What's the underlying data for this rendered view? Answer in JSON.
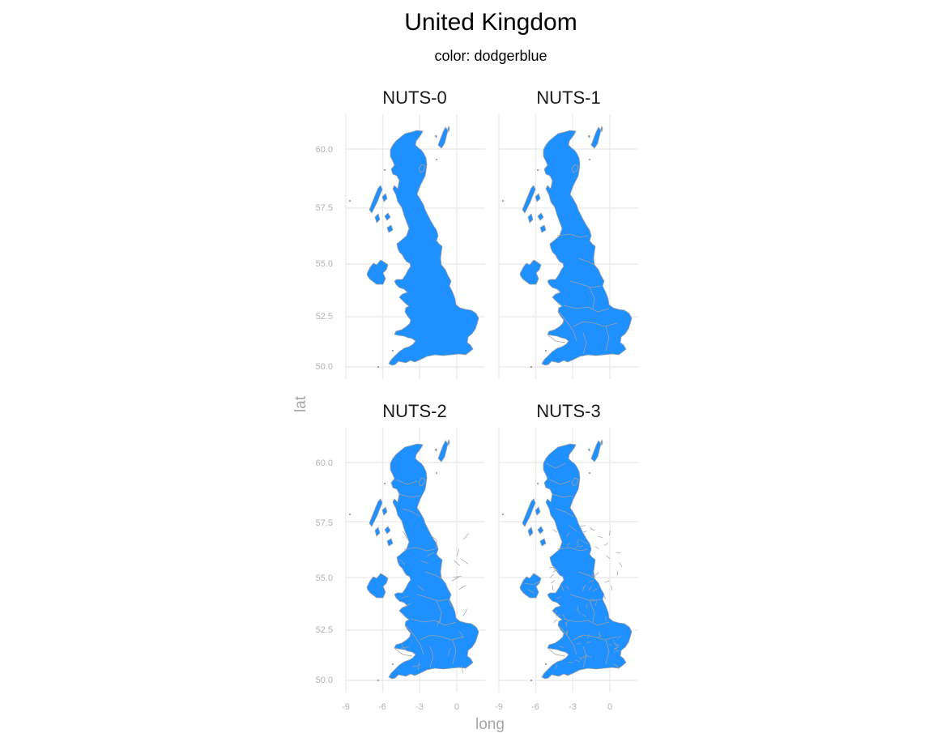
{
  "title": "United Kingdom",
  "subtitle": "color: dodgerblue",
  "fill_color": "#1e90ff",
  "border_color": "#a0a0a0",
  "grid_color": "#ebebeb",
  "axes": {
    "x_title": "long",
    "y_title": "lat",
    "x_ticks": [
      "-9",
      "-6",
      "-3",
      "0"
    ],
    "y_ticks": [
      "60.0",
      "57.5",
      "55.0",
      "52.5",
      "50.0"
    ]
  },
  "panels": [
    {
      "label": "NUTS-0",
      "level": 0
    },
    {
      "label": "NUTS-1",
      "level": 1
    },
    {
      "label": "NUTS-2",
      "level": 2
    },
    {
      "label": "NUTS-3",
      "level": 3
    }
  ],
  "chart_data": {
    "type": "map",
    "region": "United Kingdom",
    "facets": [
      "NUTS-0",
      "NUTS-1",
      "NUTS-2",
      "NUTS-3"
    ],
    "x_range": [
      -10,
      2
    ],
    "y_range": [
      49.8,
      61
    ],
    "xlabel": "long",
    "ylabel": "lat",
    "x_breaks": [
      -9,
      -6,
      -3,
      0
    ],
    "y_breaks": [
      60.0,
      57.5,
      55.0,
      52.5,
      50.0
    ],
    "grid": true
  }
}
